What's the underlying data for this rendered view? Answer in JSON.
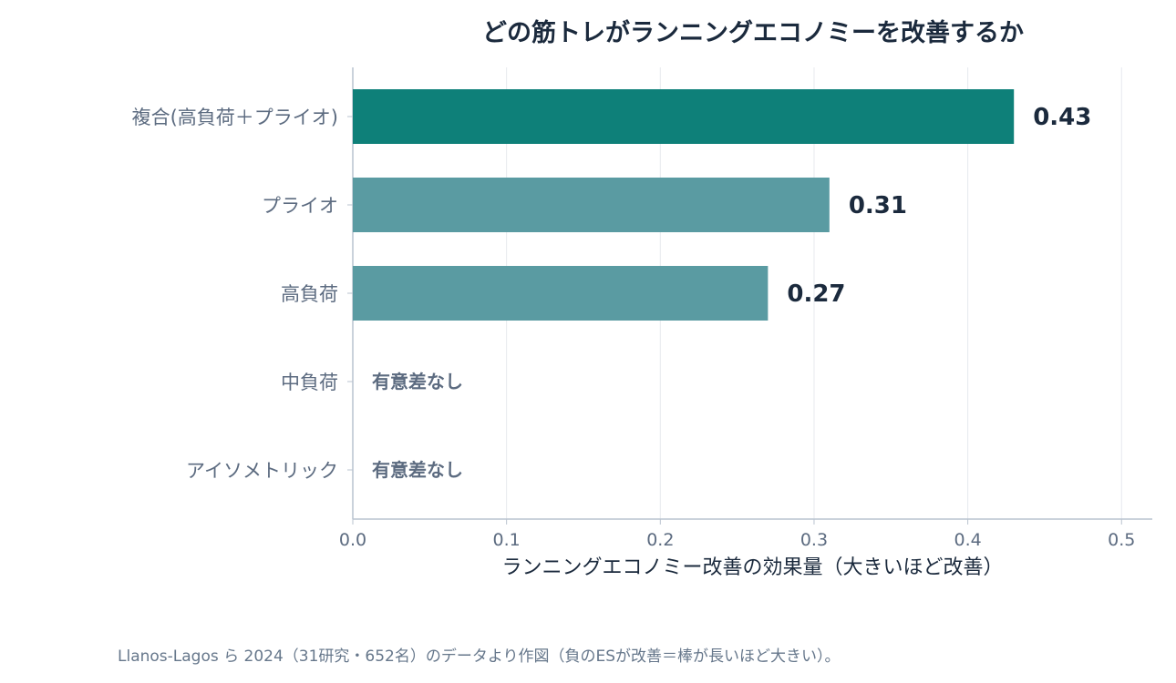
{
  "chart_data": {
    "type": "bar",
    "orientation": "horizontal",
    "title": "どの筋トレがランニングエコノミーを改善するか",
    "xlabel": "ランニングエコノミー改善の効果量（大きいほど改善）",
    "ylabel": "",
    "categories": [
      "複合(高負荷＋プライオ)",
      "プライオ",
      "高負荷",
      "中負荷",
      "アイソメトリック"
    ],
    "values": [
      0.43,
      0.31,
      0.27,
      null,
      null
    ],
    "data_labels": [
      "0.43",
      "0.31",
      "0.27",
      "有意差なし",
      "有意差なし"
    ],
    "xlim": [
      0,
      0.52
    ],
    "xticks": [
      0.0,
      0.1,
      0.2,
      0.3,
      0.4,
      0.5
    ],
    "xtick_labels": [
      "0.0",
      "0.1",
      "0.2",
      "0.3",
      "0.4",
      "0.5"
    ],
    "grid": "vertical",
    "bar_colors": [
      "#0e8079",
      "#5a9ba2",
      "#5a9ba2",
      "#5a9ba2",
      "#5a9ba2"
    ]
  },
  "footnote": "Llanos-Lagos ら 2024（31研究・652名）のデータより作図（負のESが改善＝棒が長いほど大きい）。"
}
